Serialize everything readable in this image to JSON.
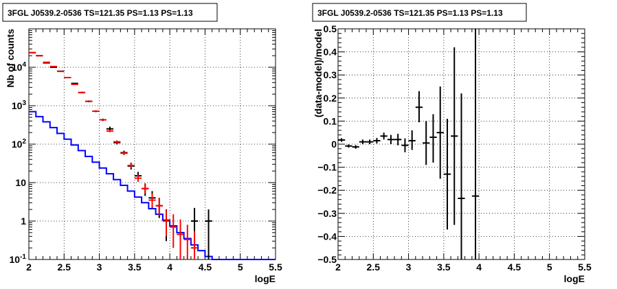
{
  "chart_data": [
    {
      "type": "line",
      "title": "3FGL J0539.2-0536 TS=121.35 PS=1.13 PS=1.13",
      "xlabel": "logE",
      "ylabel": "Nb of counts",
      "xlim": [
        2,
        5.5
      ],
      "ylim": [
        0.1,
        100000
      ],
      "yscale": "log",
      "grid": true,
      "x_ticks": [
        "2",
        "2.5",
        "3",
        "3.5",
        "4",
        "4.5",
        "5",
        "5.5"
      ],
      "y_ticks": [
        "10^-1",
        "1",
        "10",
        "10^2",
        "10^3",
        "10^4"
      ],
      "step_edges": [
        2.0,
        2.1,
        2.2,
        2.3,
        2.4,
        2.5,
        2.6,
        2.7,
        2.8,
        2.9,
        3.0,
        3.1,
        3.2,
        3.3,
        3.4,
        3.5,
        3.6,
        3.7,
        3.8,
        3.9,
        4.0,
        4.1,
        4.2,
        4.3,
        4.4,
        4.5,
        4.6,
        4.7,
        4.8,
        4.9,
        5.0,
        5.1,
        5.2,
        5.3,
        5.4,
        5.5
      ],
      "series": [
        {
          "name": "",
          "kind": "step",
          "color": "#0000ff",
          "values": [
            700,
            520,
            380,
            270,
            190,
            135,
            95,
            68,
            48,
            34,
            24,
            17,
            12,
            8.5,
            6,
            4.2,
            3,
            2.1,
            1.5,
            1.05,
            0.75,
            0.5,
            0.35,
            0.24,
            0.17,
            0.12,
            0.1,
            0.1,
            0.1,
            0.1,
            0.1,
            0.1,
            0.1,
            0.1,
            0.1
          ]
        },
        {
          "name": "",
          "kind": "markers",
          "color": "#000000",
          "points": [
            {
              "x": 2.05,
              "y": 24000,
              "ylo": 23500,
              "yhi": 24500
            },
            {
              "x": 2.15,
              "y": 20000,
              "ylo": 19500,
              "yhi": 20500
            },
            {
              "x": 2.25,
              "y": 13000,
              "ylo": 12600,
              "yhi": 13400
            },
            {
              "x": 2.35,
              "y": 10000,
              "ylo": 9700,
              "yhi": 10300
            },
            {
              "x": 2.45,
              "y": 7900,
              "ylo": 7700,
              "yhi": 8100
            },
            {
              "x": 2.55,
              "y": 5400,
              "ylo": 5200,
              "yhi": 5600
            },
            {
              "x": 2.65,
              "y": 3800,
              "ylo": 3650,
              "yhi": 3950
            },
            {
              "x": 2.75,
              "y": 2200,
              "ylo": 2100,
              "yhi": 2300
            },
            {
              "x": 2.85,
              "y": 1300,
              "ylo": 1230,
              "yhi": 1370
            },
            {
              "x": 2.95,
              "y": 720,
              "ylo": 680,
              "yhi": 760
            },
            {
              "x": 3.05,
              "y": 430,
              "ylo": 400,
              "yhi": 460
            },
            {
              "x": 3.15,
              "y": 250,
              "ylo": 220,
              "yhi": 285
            },
            {
              "x": 3.25,
              "y": 110,
              "ylo": 98,
              "yhi": 122
            },
            {
              "x": 3.35,
              "y": 60,
              "ylo": 52,
              "yhi": 68
            },
            {
              "x": 3.45,
              "y": 27,
              "ylo": 22,
              "yhi": 33
            },
            {
              "x": 3.55,
              "y": 15,
              "ylo": 11,
              "yhi": 19
            },
            {
              "x": 3.65,
              "y": 7,
              "ylo": 4.5,
              "yhi": 9.5
            },
            {
              "x": 3.75,
              "y": 4,
              "ylo": 2.2,
              "yhi": 6
            },
            {
              "x": 3.85,
              "y": 2.5,
              "ylo": 1.2,
              "yhi": 4
            },
            {
              "x": 3.95,
              "y": 1.05,
              "ylo": 0.3,
              "yhi": 2
            },
            {
              "x": 4.35,
              "y": 1,
              "ylo": 0.15,
              "yhi": 2.2
            },
            {
              "x": 4.55,
              "y": 1,
              "ylo": 0.1,
              "yhi": 2
            }
          ]
        },
        {
          "name": "",
          "kind": "markers",
          "color": "#ff0000",
          "points": [
            {
              "x": 2.05,
              "y": 24000,
              "ylo": 23800,
              "yhi": 24200
            },
            {
              "x": 2.15,
              "y": 20000,
              "ylo": 19800,
              "yhi": 20200
            },
            {
              "x": 2.25,
              "y": 13500,
              "ylo": 13300,
              "yhi": 13700
            },
            {
              "x": 2.35,
              "y": 10500,
              "ylo": 10300,
              "yhi": 10700
            },
            {
              "x": 2.45,
              "y": 7800,
              "ylo": 7600,
              "yhi": 8000
            },
            {
              "x": 2.55,
              "y": 5400,
              "ylo": 5300,
              "yhi": 5500
            },
            {
              "x": 2.65,
              "y": 3600,
              "ylo": 3500,
              "yhi": 3700
            },
            {
              "x": 2.75,
              "y": 2200,
              "ylo": 2150,
              "yhi": 2250
            },
            {
              "x": 2.85,
              "y": 1300,
              "ylo": 1260,
              "yhi": 1340
            },
            {
              "x": 2.95,
              "y": 720,
              "ylo": 700,
              "yhi": 740
            },
            {
              "x": 3.05,
              "y": 430,
              "ylo": 415,
              "yhi": 445
            },
            {
              "x": 3.15,
              "y": 220,
              "ylo": 205,
              "yhi": 235
            },
            {
              "x": 3.25,
              "y": 115,
              "ylo": 105,
              "yhi": 125
            },
            {
              "x": 3.35,
              "y": 58,
              "ylo": 52,
              "yhi": 64
            },
            {
              "x": 3.45,
              "y": 28,
              "ylo": 24,
              "yhi": 32
            },
            {
              "x": 3.55,
              "y": 13,
              "ylo": 10.5,
              "yhi": 16
            },
            {
              "x": 3.65,
              "y": 7,
              "ylo": 5.2,
              "yhi": 9.2
            },
            {
              "x": 3.75,
              "y": 3.5,
              "ylo": 2.3,
              "yhi": 5.2
            },
            {
              "x": 3.85,
              "y": 2.5,
              "ylo": 1.4,
              "yhi": 4
            },
            {
              "x": 3.95,
              "y": 1,
              "ylo": 0.4,
              "yhi": 1.9
            },
            {
              "x": 4.05,
              "y": 0.7,
              "ylo": 0.2,
              "yhi": 1.5
            },
            {
              "x": 4.15,
              "y": 0.45,
              "ylo": 0.1,
              "yhi": 1.1
            },
            {
              "x": 4.25,
              "y": 0.33,
              "ylo": 0.1,
              "yhi": 0.8
            },
            {
              "x": 4.35,
              "y": 0.2,
              "ylo": 0.1,
              "yhi": 0.55
            }
          ]
        }
      ]
    },
    {
      "type": "scatter",
      "title": "3FGL J0539.2-0536 TS=121.35 PS=1.13 PS=1.13",
      "xlabel": "logE",
      "ylabel": "(data-model)/model",
      "xlim": [
        2,
        5.5
      ],
      "ylim": [
        -0.5,
        0.5
      ],
      "grid": true,
      "x_ticks": [
        "2",
        "2.5",
        "3",
        "3.5",
        "4",
        "4.5",
        "5",
        "5.5"
      ],
      "y_ticks": [
        "−0.5",
        "−0.4",
        "−0.3",
        "−0.2",
        "−0.1",
        "0",
        "0.1",
        "0.2",
        "0.3",
        "0.4",
        "0.5"
      ],
      "series": [
        {
          "name": "",
          "color": "#000000",
          "points": [
            {
              "x": 2.05,
              "y": 0.018,
              "ylo": 0.01,
              "yhi": 0.026
            },
            {
              "x": 2.15,
              "y": -0.008,
              "ylo": -0.015,
              "yhi": -0.001
            },
            {
              "x": 2.25,
              "y": -0.012,
              "ylo": -0.02,
              "yhi": -0.004
            },
            {
              "x": 2.35,
              "y": 0.01,
              "ylo": 0.0,
              "yhi": 0.02
            },
            {
              "x": 2.45,
              "y": 0.01,
              "ylo": 0.0,
              "yhi": 0.02
            },
            {
              "x": 2.55,
              "y": 0.015,
              "ylo": 0.003,
              "yhi": 0.027
            },
            {
              "x": 2.65,
              "y": 0.035,
              "ylo": 0.02,
              "yhi": 0.05
            },
            {
              "x": 2.75,
              "y": 0.02,
              "ylo": 0.0,
              "yhi": 0.04
            },
            {
              "x": 2.85,
              "y": 0.02,
              "ylo": -0.005,
              "yhi": 0.045
            },
            {
              "x": 2.95,
              "y": -0.005,
              "ylo": -0.035,
              "yhi": 0.025
            },
            {
              "x": 3.05,
              "y": 0.015,
              "ylo": -0.025,
              "yhi": 0.06
            },
            {
              "x": 3.15,
              "y": 0.16,
              "ylo": 0.095,
              "yhi": 0.23
            },
            {
              "x": 3.25,
              "y": 0.005,
              "ylo": -0.09,
              "yhi": 0.1
            },
            {
              "x": 3.35,
              "y": 0.03,
              "ylo": -0.08,
              "yhi": 0.13
            },
            {
              "x": 3.45,
              "y": 0.05,
              "ylo": -0.15,
              "yhi": 0.25
            },
            {
              "x": 3.55,
              "y": -0.13,
              "ylo": -0.37,
              "yhi": 0.11
            },
            {
              "x": 3.65,
              "y": 0.035,
              "ylo": -0.35,
              "yhi": 0.42
            },
            {
              "x": 3.75,
              "y": -0.235,
              "ylo": -0.5,
              "yhi": 0.22
            },
            {
              "x": 3.95,
              "y": -0.225,
              "ylo": -0.5,
              "yhi": 0.5
            }
          ]
        }
      ]
    }
  ]
}
